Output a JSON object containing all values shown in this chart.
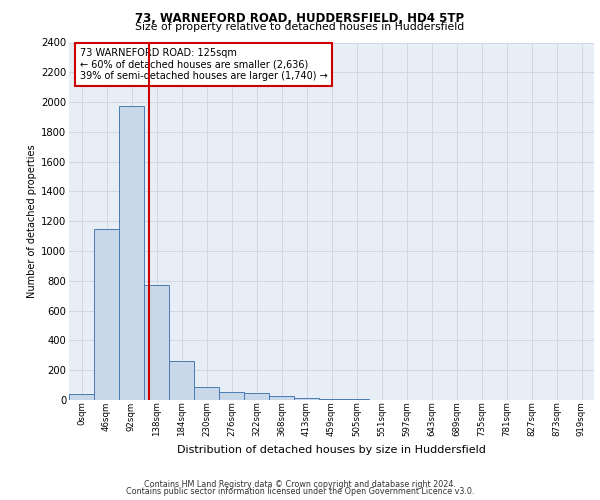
{
  "title1": "73, WARNEFORD ROAD, HUDDERSFIELD, HD4 5TP",
  "title2": "Size of property relative to detached houses in Huddersfield",
  "xlabel": "Distribution of detached houses by size in Huddersfield",
  "ylabel": "Number of detached properties",
  "bar_labels": [
    "0sqm",
    "46sqm",
    "92sqm",
    "138sqm",
    "184sqm",
    "230sqm",
    "276sqm",
    "322sqm",
    "368sqm",
    "413sqm",
    "459sqm",
    "505sqm",
    "551sqm",
    "597sqm",
    "643sqm",
    "689sqm",
    "735sqm",
    "781sqm",
    "827sqm",
    "873sqm",
    "919sqm"
  ],
  "bar_values": [
    40,
    1150,
    1975,
    775,
    260,
    90,
    55,
    50,
    30,
    15,
    10,
    5,
    3,
    2,
    1,
    1,
    0,
    0,
    0,
    0,
    0
  ],
  "bar_color": "#c8d8e8",
  "bar_edge_color": "#4a7ab5",
  "annotation_text": "73 WARNEFORD ROAD: 125sqm\n← 60% of detached houses are smaller (2,636)\n39% of semi-detached houses are larger (1,740) →",
  "annotation_box_color": "#ffffff",
  "annotation_box_edge": "#cc0000",
  "vline_color": "#cc0000",
  "ylim": [
    0,
    2400
  ],
  "yticks": [
    0,
    200,
    400,
    600,
    800,
    1000,
    1200,
    1400,
    1600,
    1800,
    2000,
    2200,
    2400
  ],
  "grid_color": "#d0d8e8",
  "bg_color": "#e8eef5",
  "footer1": "Contains HM Land Registry data © Crown copyright and database right 2024.",
  "footer2": "Contains public sector information licensed under the Open Government Licence v3.0."
}
